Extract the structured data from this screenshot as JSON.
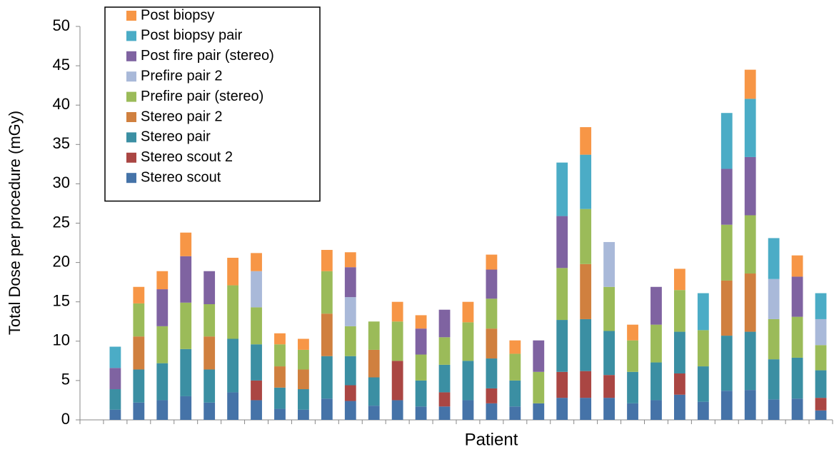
{
  "chart_data": {
    "type": "stacked-bar",
    "y_label": "Total Dose per procedure (mGy)",
    "x_label": "Patient",
    "categories": [
      null,
      null,
      null,
      null,
      null,
      null,
      null,
      null,
      null,
      null,
      null,
      null,
      null,
      null,
      null,
      null,
      null,
      null,
      null,
      null,
      null,
      null,
      null,
      null,
      null,
      null,
      null,
      null,
      null,
      null,
      null,
      null
    ],
    "series": [
      {
        "name": "Stereo scout",
        "color": "#4573a8",
        "values": [
          null,
          1.3,
          2.2,
          2.5,
          3.0,
          2.2,
          3.5,
          2.5,
          1.4,
          1.3,
          2.7,
          2.4,
          1.8,
          2.5,
          1.7,
          1.7,
          2.5,
          2.1,
          1.7,
          2.1,
          2.8,
          2.8,
          2.8,
          2.1,
          2.5,
          3.2,
          2.3,
          3.7,
          3.8,
          2.6,
          2.7,
          1.2
        ]
      },
      {
        "name": "Stereo scout 2",
        "color": "#aa4643",
        "values": [
          null,
          null,
          null,
          null,
          null,
          null,
          null,
          2.5,
          null,
          null,
          null,
          2.0,
          null,
          5.0,
          null,
          1.8,
          null,
          1.9,
          null,
          null,
          3.3,
          3.4,
          2.9,
          null,
          null,
          2.7,
          null,
          null,
          null,
          null,
          null,
          1.6
        ]
      },
      {
        "name": "Stereo pair",
        "color": "#3b8fa3",
        "values": [
          null,
          2.6,
          4.2,
          4.7,
          6.0,
          4.2,
          6.8,
          4.6,
          2.7,
          2.6,
          5.4,
          3.7,
          3.6,
          null,
          3.3,
          3.5,
          5.0,
          3.8,
          3.3,
          null,
          6.6,
          6.6,
          5.6,
          4.0,
          4.8,
          5.3,
          4.5,
          7.0,
          7.4,
          5.1,
          5.2,
          3.5
        ]
      },
      {
        "name": "Stereo pair 2",
        "color": "#d0803f",
        "values": [
          null,
          null,
          4.2,
          null,
          null,
          4.2,
          null,
          null,
          2.7,
          2.5,
          5.4,
          null,
          3.5,
          null,
          null,
          null,
          null,
          3.8,
          null,
          null,
          null,
          7.0,
          null,
          null,
          null,
          null,
          null,
          7.0,
          7.4,
          null,
          null,
          null
        ]
      },
      {
        "name": "Prefire pair (stereo)",
        "color": "#9bbb59",
        "values": [
          null,
          null,
          4.2,
          4.7,
          5.9,
          4.1,
          6.8,
          4.7,
          2.8,
          2.5,
          5.4,
          3.8,
          3.6,
          5.0,
          3.3,
          3.5,
          4.9,
          3.8,
          3.4,
          4.0,
          6.6,
          7.0,
          5.6,
          4.0,
          4.8,
          5.3,
          4.6,
          7.1,
          7.4,
          5.1,
          5.2,
          3.2
        ]
      },
      {
        "name": "Prefire pair 2",
        "color": "#a9b9d9",
        "values": [
          null,
          null,
          null,
          null,
          null,
          null,
          null,
          4.6,
          null,
          null,
          null,
          3.7,
          null,
          null,
          null,
          null,
          null,
          null,
          null,
          null,
          null,
          null,
          5.7,
          null,
          null,
          null,
          null,
          null,
          null,
          5.1,
          null,
          3.3
        ]
      },
      {
        "name": "Post fire pair (stereo)",
        "color": "#7f63a1",
        "values": [
          null,
          2.7,
          null,
          4.7,
          5.9,
          4.2,
          null,
          null,
          null,
          null,
          null,
          3.8,
          null,
          null,
          3.3,
          3.5,
          null,
          3.7,
          null,
          4.0,
          6.6,
          null,
          null,
          null,
          4.8,
          null,
          null,
          7.1,
          7.4,
          null,
          5.1,
          null
        ]
      },
      {
        "name": "Post biopsy pair",
        "color": "#4bacc6",
        "values": [
          null,
          2.7,
          null,
          null,
          null,
          null,
          null,
          null,
          null,
          null,
          null,
          null,
          null,
          null,
          null,
          null,
          null,
          null,
          null,
          null,
          6.8,
          6.9,
          null,
          null,
          null,
          null,
          4.7,
          7.1,
          7.4,
          5.2,
          null,
          3.3
        ]
      },
      {
        "name": "Post biopsy",
        "color": "#f79646",
        "values": [
          null,
          null,
          2.1,
          2.3,
          3.0,
          null,
          3.5,
          2.3,
          1.4,
          1.4,
          2.7,
          1.9,
          null,
          2.5,
          1.7,
          null,
          2.6,
          1.9,
          1.7,
          null,
          null,
          3.5,
          null,
          2.0,
          null,
          2.7,
          null,
          null,
          3.7,
          null,
          2.7,
          null
        ]
      }
    ],
    "ylim": [
      0,
      50
    ],
    "yticks": [
      0,
      5,
      10,
      15,
      20,
      25,
      30,
      35,
      40,
      45,
      50
    ],
    "grid": false,
    "legend": "top-left"
  }
}
